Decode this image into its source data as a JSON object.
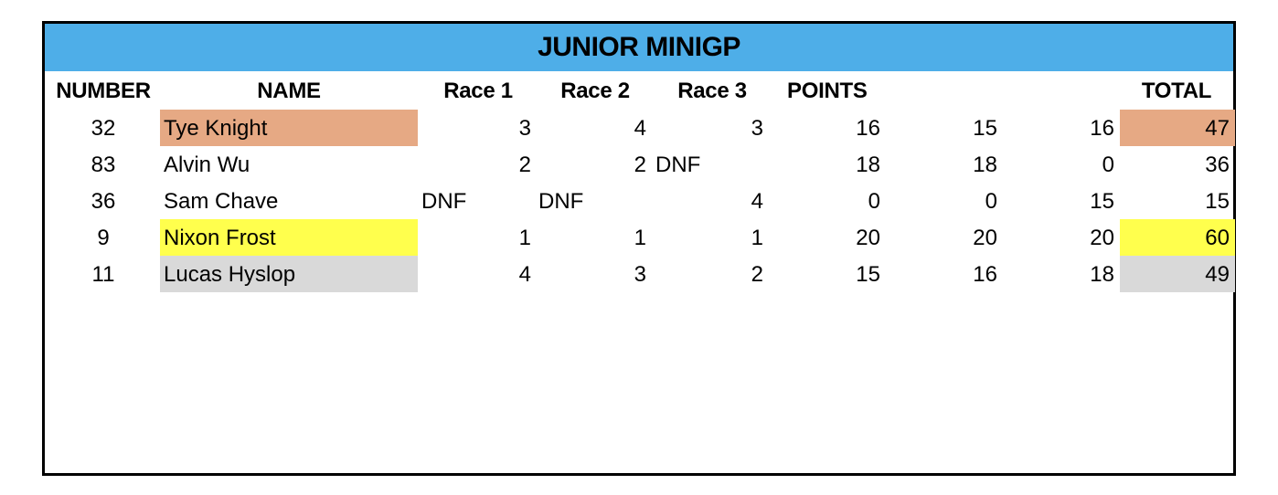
{
  "title": "JUNIOR MINIGP",
  "headers": {
    "number": "NUMBER",
    "name": "NAME",
    "race1": "Race 1",
    "race2": "Race 2",
    "race3": "Race 3",
    "points": "POINTS",
    "total": "TOTAL"
  },
  "highlight_colors": {
    "bronze": "#e6a984",
    "gold": "#ffff4d",
    "silver": "#d9d9d9",
    "title_bar": "#4eaee8"
  },
  "rows": [
    {
      "number": "32",
      "name": "Tye Knight",
      "race1": "3",
      "race2": "4",
      "race3": "3",
      "points1": "16",
      "points2": "15",
      "points3": "16",
      "total": "47",
      "highlight": "bronze"
    },
    {
      "number": "83",
      "name": "Alvin Wu",
      "race1": "2",
      "race2": "2",
      "race3": "DNF",
      "points1": "18",
      "points2": "18",
      "points3": "0",
      "total": "36",
      "highlight": ""
    },
    {
      "number": "36",
      "name": "Sam Chave",
      "race1": "DNF",
      "race2": "DNF",
      "race3": "4",
      "points1": "0",
      "points2": "0",
      "points3": "15",
      "total": "15",
      "highlight": ""
    },
    {
      "number": "9",
      "name": "Nixon Frost",
      "race1": "1",
      "race2": "1",
      "race3": "1",
      "points1": "20",
      "points2": "20",
      "points3": "20",
      "total": "60",
      "highlight": "gold"
    },
    {
      "number": "11",
      "name": "Lucas Hyslop",
      "race1": "4",
      "race2": "3",
      "race3": "2",
      "points1": "15",
      "points2": "16",
      "points3": "18",
      "total": "49",
      "highlight": "silver"
    }
  ]
}
